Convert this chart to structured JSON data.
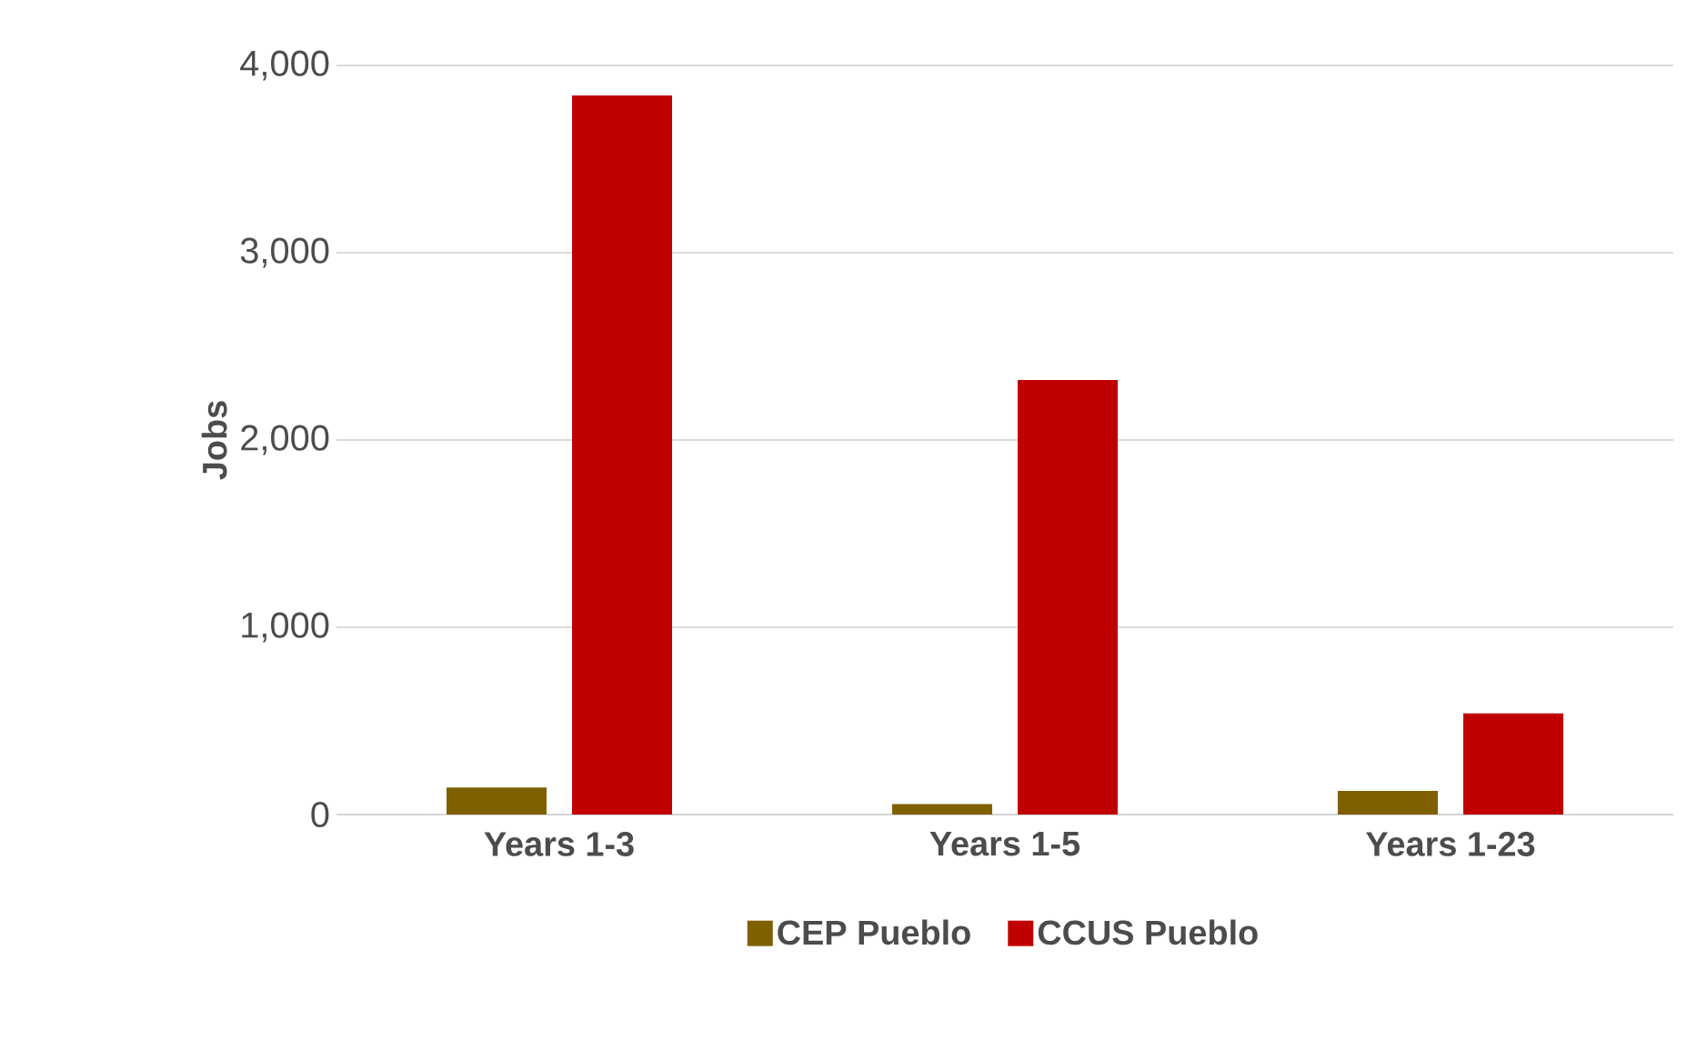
{
  "chart_data": {
    "type": "bar",
    "ylabel": "Jobs",
    "categories": [
      "Years 1-3",
      "Years 1-5",
      "Years 1-23"
    ],
    "series": [
      {
        "name": "CEP Pueblo",
        "color": "#7f6000",
        "values": [
          145,
          56,
          126
        ]
      },
      {
        "name": "CCUS Pueblo",
        "color": "#c00000",
        "values": [
          3840,
          2320,
          540
        ]
      }
    ],
    "ylim": [
      0,
      4000
    ],
    "yticks": [
      {
        "value": 0,
        "label": "0"
      },
      {
        "value": 1000,
        "label": "1,000"
      },
      {
        "value": 2000,
        "label": "2,000"
      },
      {
        "value": 3000,
        "label": "3,000"
      },
      {
        "value": 4000,
        "label": "4,000"
      }
    ],
    "grid": "y",
    "legend": "bottom"
  }
}
